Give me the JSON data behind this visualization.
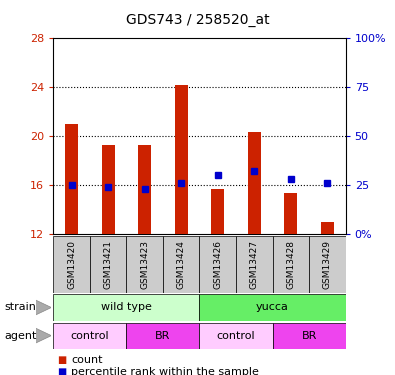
{
  "title": "GDS743 / 258520_at",
  "samples": [
    "GSM13420",
    "GSM13421",
    "GSM13423",
    "GSM13424",
    "GSM13426",
    "GSM13427",
    "GSM13428",
    "GSM13429"
  ],
  "bar_values": [
    21.0,
    19.3,
    19.3,
    24.1,
    15.7,
    20.3,
    15.4,
    13.0
  ],
  "bar_base": 12,
  "blue_dot_percentile": [
    25,
    24,
    23,
    26,
    30,
    32,
    28,
    26
  ],
  "ylim_left": [
    12,
    28
  ],
  "ylim_right": [
    0,
    100
  ],
  "yticks_left": [
    12,
    16,
    20,
    24,
    28
  ],
  "yticks_right": [
    0,
    25,
    50,
    75,
    100
  ],
  "ytick_labels_right": [
    "0%",
    "25",
    "50",
    "75",
    "100%"
  ],
  "bar_color": "#cc2200",
  "dot_color": "#0000cc",
  "strain_labels": [
    "wild type",
    "yucca"
  ],
  "strain_colors": [
    "#ccffcc",
    "#66ee66"
  ],
  "agent_labels": [
    "control",
    "BR",
    "control",
    "BR"
  ],
  "agent_colors": [
    "#ffccff",
    "#ee44ee",
    "#ffccff",
    "#ee44ee"
  ],
  "legend_count_color": "#cc2200",
  "legend_dot_color": "#0000cc",
  "tick_label_color_left": "#cc2200",
  "tick_label_color_right": "#0000cc",
  "gsm_box_color": "#cccccc",
  "bar_width": 0.35
}
